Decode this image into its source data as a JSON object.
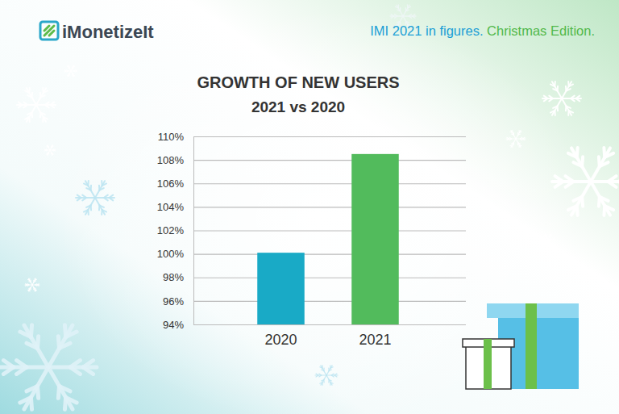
{
  "header": {
    "brand": "iMonetizeIt",
    "headline": [
      "IMI 2021 in figures.",
      "Christmas Edition."
    ]
  },
  "chart_data": {
    "type": "bar",
    "title": "GROWTH OF NEW USERS",
    "subtitle": "2021 vs 2020",
    "categories": [
      "2020",
      "2021"
    ],
    "values": [
      100.1,
      108.5
    ],
    "colors": [
      "#19aac6",
      "#52bb5c"
    ],
    "ylim": [
      94,
      110
    ],
    "yticks": [
      {
        "value": 94,
        "label": "94%"
      },
      {
        "value": 96,
        "label": "96%"
      },
      {
        "value": 98,
        "label": "98%"
      },
      {
        "value": 100,
        "label": "100%"
      },
      {
        "value": 102,
        "label": "102%"
      },
      {
        "value": 104,
        "label": "104%"
      },
      {
        "value": 106,
        "label": "106%"
      },
      {
        "value": 108,
        "label": "108%"
      },
      {
        "value": 110,
        "label": "110%"
      }
    ],
    "grid": true
  }
}
